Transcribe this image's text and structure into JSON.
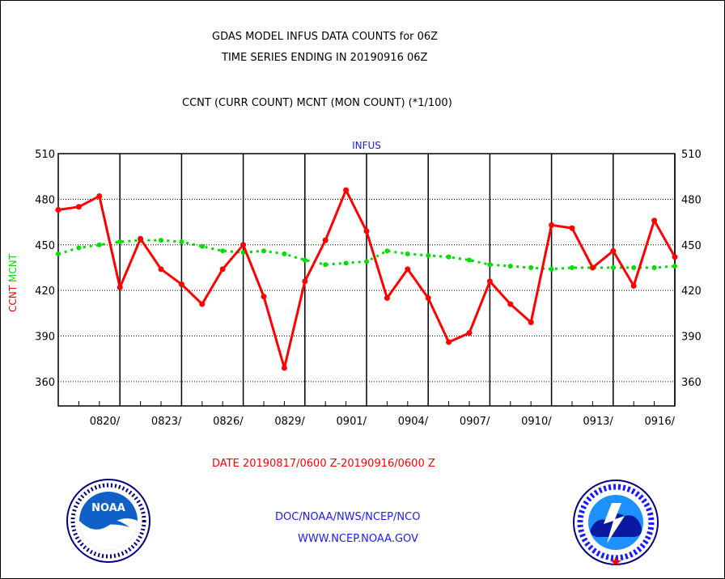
{
  "header": {
    "title_line1": "GDAS MODEL INFUS DATA COUNTS for 06Z",
    "title_line2": "TIME SERIES ENDING IN 20190916 06Z",
    "subtitle": "CCNT (CURR COUNT) MCNT (MON COUNT) (*1/100)"
  },
  "footer": {
    "date_range": "DATE 20190817/0600 Z-20190916/0600 Z",
    "org": "DOC/NOAA/NWS/NCEP/NCO",
    "url": "WWW.NCEP.NOAA.GOV"
  },
  "logos": {
    "noaa": {
      "center_text": "NOAA"
    }
  },
  "colors": {
    "ccnt": "#ff0000",
    "mcnt": "#00dd00",
    "grid": "#000000",
    "plot_title": "#1a1aff"
  },
  "chart_data": {
    "type": "line",
    "title": "INFUS",
    "ylabel_series": [
      "CCNT",
      "MCNT"
    ],
    "ylim": [
      344,
      510
    ],
    "yticks": [
      510,
      480,
      450,
      420,
      390,
      360
    ],
    "xlim": [
      "0817",
      "0916"
    ],
    "xticks": [
      "0820/",
      "0823/",
      "0826/",
      "0829/",
      "0901/",
      "0904/",
      "0907/",
      "0910/",
      "0913/",
      "0916/"
    ],
    "grid": true,
    "x": [
      "0817",
      "0818",
      "0819",
      "0820",
      "0821",
      "0822",
      "0823",
      "0824",
      "0825",
      "0826",
      "0827",
      "0828",
      "0829",
      "0830",
      "0831",
      "0901",
      "0902",
      "0903",
      "0904",
      "0905",
      "0906",
      "0907",
      "0908",
      "0909",
      "0910",
      "0911",
      "0912",
      "0913",
      "0914",
      "0915",
      "0916"
    ],
    "series": [
      {
        "name": "CCNT",
        "values": [
          473,
          475,
          482,
          422,
          454,
          434,
          424,
          411,
          434,
          450,
          416,
          369,
          426,
          453,
          486,
          459,
          415,
          434,
          415,
          386,
          392,
          426,
          411,
          399,
          463,
          461,
          435,
          446,
          423,
          466,
          442
        ]
      },
      {
        "name": "MCNT",
        "values": [
          444,
          448,
          450,
          452,
          453,
          453,
          452,
          449,
          446,
          445,
          446,
          444,
          440,
          437,
          438,
          439,
          446,
          444,
          443,
          442,
          440,
          437,
          436,
          435,
          434,
          435,
          435,
          435,
          435,
          435,
          436
        ]
      }
    ]
  }
}
